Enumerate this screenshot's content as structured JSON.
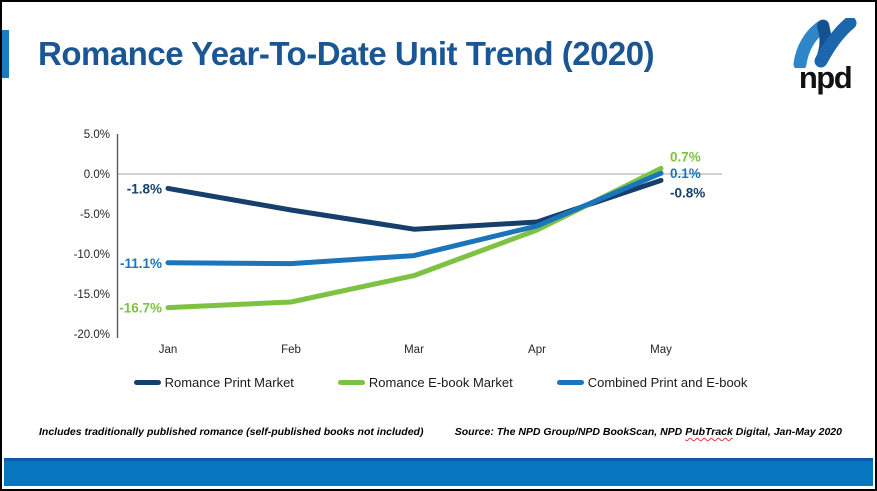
{
  "slide": {
    "title": "Romance Year-To-Date Unit Trend (2020)",
    "logo_text": "npd",
    "footnote": "Includes traditionally published romance (self-published books not included)",
    "source": {
      "prefix": "Source: The NPD Group/NPD BookScan, NPD ",
      "flagged_word": "PubTrack",
      "suffix": " Digital, Jan-May 2020"
    }
  },
  "colors": {
    "title": "#1A5694",
    "accent_bar": "#1C7BC0",
    "bottom_bar": "#0677BE",
    "bottom_bar_edge": "#0A5CA8",
    "zero_line": "#A6A6A6",
    "axis_line": "#595959",
    "tick_text": "#262626"
  },
  "chart_data": {
    "type": "line",
    "title": "",
    "xlabel": "",
    "ylabel": "",
    "categories": [
      "Jan",
      "Feb",
      "Mar",
      "Apr",
      "May"
    ],
    "series": [
      {
        "name": "Romance Print Market",
        "color": "#16406B",
        "values": [
          -1.8,
          -4.5,
          -6.9,
          -6.0,
          -0.8
        ],
        "first_label": "-1.8%",
        "last_label": "-0.8%"
      },
      {
        "name": "Romance E-book Market",
        "color": "#7DC242",
        "values": [
          -16.7,
          -16.0,
          -12.7,
          -7.0,
          0.7
        ],
        "first_label": "-16.7%",
        "last_label": "0.7%"
      },
      {
        "name": "Combined Print and E-book",
        "color": "#1B75BC",
        "values": [
          -11.1,
          -11.2,
          -10.2,
          -6.5,
          0.1
        ],
        "first_label": "-11.1%",
        "last_label": "0.1%"
      }
    ],
    "y_ticks": [
      5.0,
      0.0,
      -5.0,
      -10.0,
      -15.0,
      -20.0
    ],
    "y_tick_labels": [
      "5.0%",
      "0.0%",
      "-5.0%",
      "-10.0%",
      "-15.0%",
      "-20.0%"
    ],
    "ylim": [
      -20,
      5
    ],
    "grid": "horizontal zero line only",
    "legend_position": "bottom"
  }
}
